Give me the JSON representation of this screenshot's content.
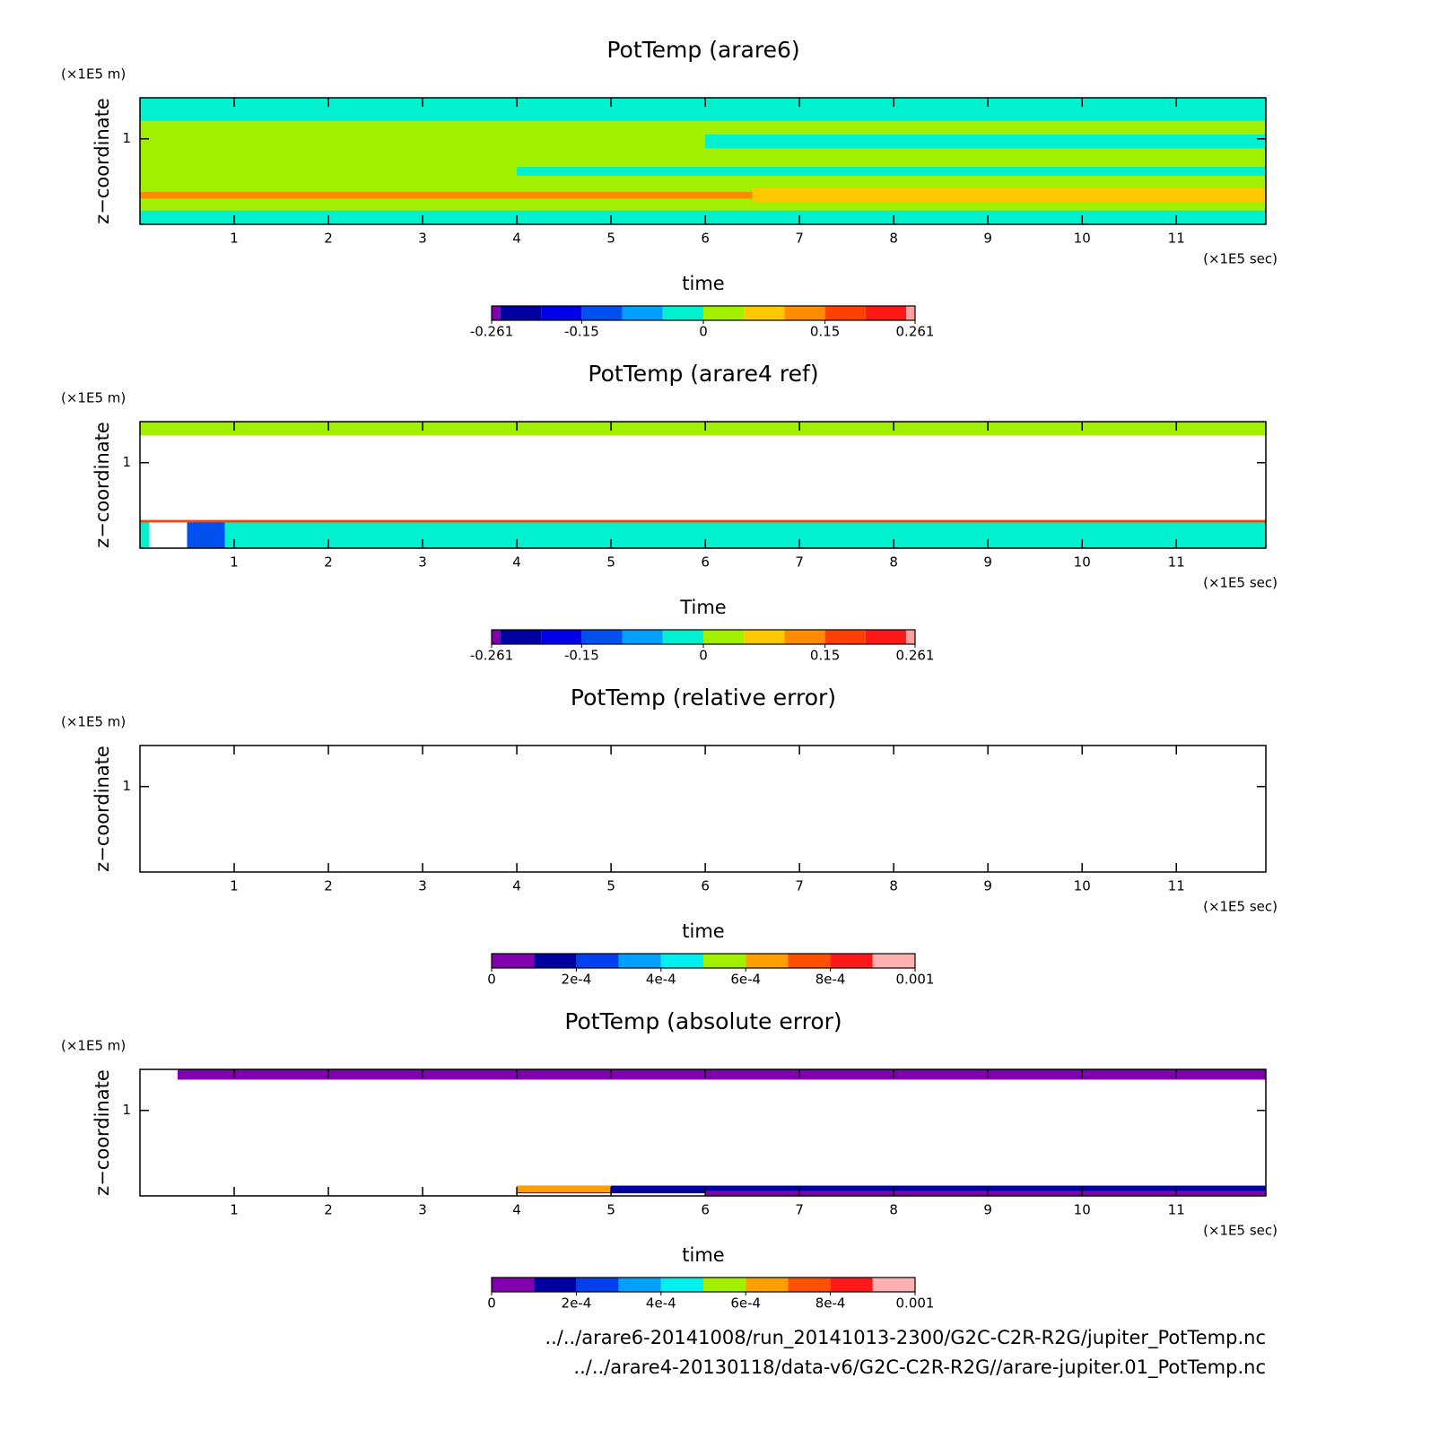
{
  "chart_data": [
    {
      "type": "contour",
      "title": "PotTemp (arare6)",
      "xlabel": "time",
      "x_unit": "(×1E5 sec)",
      "ylabel": "z−coordinate",
      "y_unit": "(×1E5 m)",
      "xlim": [
        0,
        11.95
      ],
      "ylim": [
        0,
        1.48
      ],
      "xticks": [
        1,
        2,
        3,
        4,
        5,
        6,
        7,
        8,
        9,
        10,
        11
      ],
      "yticks": [
        1
      ],
      "levels": [
        -0.261,
        -0.25,
        -0.2,
        -0.15,
        -0.1,
        -0.05,
        0,
        0.05,
        0.1,
        0.15,
        0.2,
        0.25,
        0.261
      ],
      "level_ticks": [
        -0.261,
        -0.15,
        0,
        0.15,
        0.261
      ],
      "colors": [
        "#8000b0",
        "#0000a0",
        "#0000e8",
        "#0050f0",
        "#00a0ff",
        "#00f0d0",
        "#a0f000",
        "#ffc800",
        "#ff8c00",
        "#ff4000",
        "#ff1818",
        "#ffa0a0"
      ],
      "bands": [
        {
          "xlim": [
            0,
            11.95
          ],
          "ylim": [
            0,
            1.48
          ],
          "color": "#a0f000"
        },
        {
          "xlim": [
            0,
            11.95
          ],
          "ylim": [
            0,
            0.16
          ],
          "color": "#00f0d0"
        },
        {
          "xlim": [
            0,
            11.95
          ],
          "ylim": [
            1.21,
            1.47
          ],
          "color": "#00f0d0"
        },
        {
          "xlim": [
            6,
            11.95
          ],
          "ylim": [
            0.89,
            1.05
          ],
          "color": "#00f0d0"
        },
        {
          "xlim": [
            4,
            11.95
          ],
          "ylim": [
            0.57,
            0.67
          ],
          "color": "#00f0d0"
        },
        {
          "xlim": [
            6.5,
            11.95
          ],
          "ylim": [
            0.26,
            0.42
          ],
          "color": "#ffc800"
        },
        {
          "xlim": [
            0,
            6.5
          ],
          "ylim": [
            0.3,
            0.38
          ],
          "color": "#ff8c00"
        }
      ]
    },
    {
      "type": "contour",
      "title": "PotTemp (arare4 ref)",
      "xlabel": "Time",
      "x_unit": "(×1E5 sec)",
      "ylabel": "z−coordinate",
      "y_unit": "(×1E5 m)",
      "xlim": [
        0,
        11.95
      ],
      "ylim": [
        0,
        1.48
      ],
      "xticks": [
        1,
        2,
        3,
        4,
        5,
        6,
        7,
        8,
        9,
        10,
        11
      ],
      "yticks": [
        1
      ],
      "levels": [
        -0.261,
        -0.25,
        -0.2,
        -0.15,
        -0.1,
        -0.05,
        0,
        0.05,
        0.1,
        0.15,
        0.2,
        0.25,
        0.261
      ],
      "level_ticks": [
        -0.261,
        -0.15,
        0,
        0.15,
        0.261
      ],
      "colors": [
        "#8000b0",
        "#0000a0",
        "#0000e8",
        "#0050f0",
        "#00a0ff",
        "#00f0d0",
        "#a0f000",
        "#ffc800",
        "#ff8c00",
        "#ff4000",
        "#ff1818",
        "#ffa0a0"
      ],
      "bands": [
        {
          "xlim": [
            0,
            11.95
          ],
          "ylim": [
            1.32,
            1.48
          ],
          "color": "#a0f000"
        },
        {
          "xlim": [
            0,
            11.95
          ],
          "ylim": [
            0,
            0.32
          ],
          "color": "#00f0d0"
        },
        {
          "xlim": [
            0,
            11.95
          ],
          "ylim": [
            0.3,
            0.33
          ],
          "color": "#ff4000"
        },
        {
          "xlim": [
            0.5,
            0.9
          ],
          "ylim": [
            0,
            0.3
          ],
          "color": "#0050f0"
        },
        {
          "xlim": [
            0.1,
            0.5
          ],
          "ylim": [
            0,
            0.3
          ],
          "color": "#ffffff"
        }
      ]
    },
    {
      "type": "contour",
      "title": "PotTemp (relative error)",
      "xlabel": "time",
      "x_unit": "(×1E5 sec)",
      "ylabel": "z−coordinate",
      "y_unit": "(×1E5 m)",
      "xlim": [
        0,
        11.95
      ],
      "ylim": [
        0,
        1.48
      ],
      "xticks": [
        1,
        2,
        3,
        4,
        5,
        6,
        7,
        8,
        9,
        10,
        11
      ],
      "yticks": [
        1
      ],
      "levels": [
        0,
        0.0001,
        0.0002,
        0.0003,
        0.0004,
        0.0005,
        0.0006,
        0.0007,
        0.0008,
        0.0009,
        0.001
      ],
      "level_ticks": [
        0,
        {
          "value": 0.0002,
          "label": "2e-4"
        },
        {
          "value": 0.0004,
          "label": "4e-4"
        },
        {
          "value": 0.0006,
          "label": "6e-4"
        },
        {
          "value": 0.0008,
          "label": "8e-4"
        },
        0.001
      ],
      "colors": [
        "#8000b0",
        "#0000a0",
        "#0040f0",
        "#00a0ff",
        "#00f0f0",
        "#a0f000",
        "#ffa000",
        "#ff5000",
        "#ff1818",
        "#ffb0b0"
      ],
      "bands": []
    },
    {
      "type": "contour",
      "title": "PotTemp (absolute error)",
      "xlabel": "time",
      "x_unit": "(×1E5 sec)",
      "ylabel": "z−coordinate",
      "y_unit": "(×1E5 m)",
      "xlim": [
        0,
        11.95
      ],
      "ylim": [
        0,
        1.48
      ],
      "xticks": [
        1,
        2,
        3,
        4,
        5,
        6,
        7,
        8,
        9,
        10,
        11
      ],
      "yticks": [
        1
      ],
      "levels": [
        0,
        0.0001,
        0.0002,
        0.0003,
        0.0004,
        0.0005,
        0.0006,
        0.0007,
        0.0008,
        0.0009,
        0.001
      ],
      "level_ticks": [
        0,
        {
          "value": 0.0002,
          "label": "2e-4"
        },
        {
          "value": 0.0004,
          "label": "4e-4"
        },
        {
          "value": 0.0006,
          "label": "6e-4"
        },
        {
          "value": 0.0008,
          "label": "8e-4"
        },
        0.001
      ],
      "colors": [
        "#8000b0",
        "#0000a0",
        "#0040f0",
        "#00a0ff",
        "#00f0f0",
        "#a0f000",
        "#ffa000",
        "#ff5000",
        "#ff1818",
        "#ffb0b0"
      ],
      "bands": [
        {
          "xlim": [
            0.4,
            11.95
          ],
          "ylim": [
            1.36,
            1.48
          ],
          "color": "#8000b0"
        },
        {
          "xlim": [
            4,
            11.95
          ],
          "ylim": [
            0.03,
            0.12
          ],
          "color": "#0000a0"
        },
        {
          "xlim": [
            6,
            11.95
          ],
          "ylim": [
            0,
            0.06
          ],
          "color": "#8000b0"
        },
        {
          "xlim": [
            4,
            5
          ],
          "ylim": [
            0.04,
            0.12
          ],
          "color": "#ffa000"
        }
      ]
    }
  ],
  "files": [
    "../../arare6-20141008/run_20141013-2300/G2C-C2R-R2G/jupiter_PotTemp.nc",
    "../../arare4-20130118/data-v6/G2C-C2R-R2G//arare-jupiter.01_PotTemp.nc"
  ]
}
